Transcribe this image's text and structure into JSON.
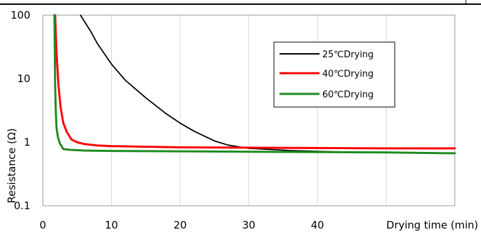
{
  "chart_data": {
    "type": "line",
    "title": "",
    "xlabel": "Drying time (min)",
    "ylabel": "Resistance (Ω)",
    "xlim": [
      0,
      60
    ],
    "ylim": [
      0.1,
      100
    ],
    "y_scale": "log",
    "x_ticks": [
      0,
      10,
      20,
      30,
      40
    ],
    "x_tick_labels": [
      "0",
      "10",
      "20",
      "30",
      "40"
    ],
    "y_ticks": [
      0.1,
      1,
      10,
      100
    ],
    "y_tick_labels": [
      "0.1",
      "1",
      "10",
      "100"
    ],
    "grid": "vertical",
    "legend_position": "top-right",
    "series": [
      {
        "name": "25℃Drying",
        "color": "#000000",
        "x": [
          5.5,
          7,
          8,
          10,
          12,
          15,
          18,
          20,
          22,
          25,
          27,
          30,
          33,
          36,
          40,
          45,
          50,
          55,
          60
        ],
        "y": [
          100,
          55,
          35,
          17,
          9.5,
          5,
          2.8,
          2,
          1.5,
          1.05,
          0.9,
          0.8,
          0.77,
          0.74,
          0.72,
          0.7,
          0.69,
          0.68,
          0.67
        ]
      },
      {
        "name": "40℃Drying",
        "color": "#ff0000",
        "x": [
          1.8,
          2,
          2.3,
          2.6,
          3,
          3.5,
          4.2,
          5,
          6,
          8,
          10,
          15,
          20,
          30,
          40,
          50,
          60
        ],
        "y": [
          100,
          25,
          7.5,
          3.5,
          2,
          1.45,
          1.1,
          1.0,
          0.94,
          0.89,
          0.87,
          0.85,
          0.83,
          0.82,
          0.81,
          0.8,
          0.8
        ]
      },
      {
        "name": "60℃Drying",
        "color": "#1e8a1e",
        "x": [
          1.7,
          1.8,
          1.9,
          2.0,
          2.2,
          2.5,
          3,
          4,
          6,
          10,
          20,
          30,
          40,
          50,
          60
        ],
        "y": [
          100,
          8,
          3,
          1.7,
          1.2,
          0.95,
          0.78,
          0.76,
          0.74,
          0.73,
          0.72,
          0.71,
          0.7,
          0.69,
          0.67
        ]
      }
    ]
  }
}
